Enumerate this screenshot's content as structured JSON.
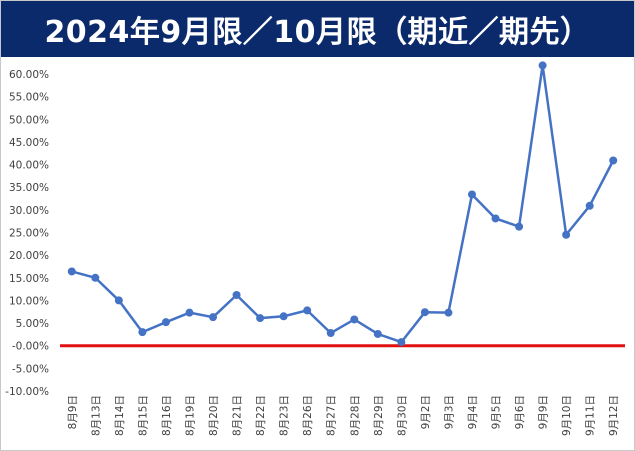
{
  "chart_data": {
    "type": "line",
    "title": "2024年9月限／10月限（期近／期先）",
    "xlabel": "",
    "ylabel": "",
    "ylim": [
      -0.1,
      0.6
    ],
    "ytick_step": 0.05,
    "grid": false,
    "legend": "none",
    "categories": [
      "8月9日",
      "8月13日",
      "8月14日",
      "8月15日",
      "8月16日",
      "8月19日",
      "8月20日",
      "8月21日",
      "8月22日",
      "8月23日",
      "8月26日",
      "8月27日",
      "8月28日",
      "8月29日",
      "8月30日",
      "9月2日",
      "9月3日",
      "9月4日",
      "9月5日",
      "9月6日",
      "9月9日",
      "9月10日",
      "9月11日",
      "9月12日"
    ],
    "series": [
      {
        "values": [
          0.164,
          0.15,
          0.1,
          0.03,
          0.052,
          0.073,
          0.063,
          0.112,
          0.061,
          0.065,
          0.078,
          0.028,
          0.058,
          0.026,
          0.008,
          0.074,
          0.073,
          0.334,
          0.281,
          0.263,
          0.619,
          0.245,
          0.309,
          0.409
        ],
        "color": "#4472c4"
      }
    ],
    "zero_line_color": "#e01010"
  }
}
